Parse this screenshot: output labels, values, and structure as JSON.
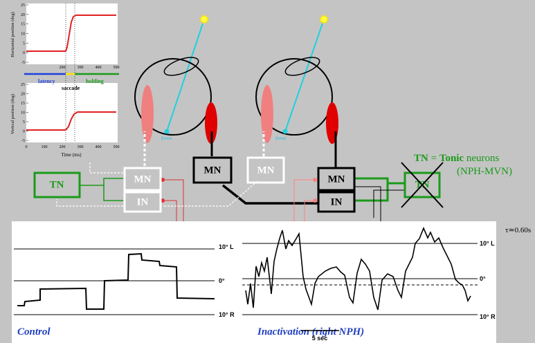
{
  "inset_top": {
    "y_label": "Horizontal position (deg)",
    "y_ticks": [
      25,
      20,
      15,
      10,
      5,
      0,
      -5
    ],
    "x_ticks": [
      200,
      300,
      400,
      500
    ]
  },
  "phases": {
    "latency": "latency",
    "saccade": "saccade",
    "holding": "holding"
  },
  "inset_bottom": {
    "y_label": "Vertical position (deg)",
    "y_ticks": [
      25,
      20,
      15,
      10,
      5,
      0,
      -5
    ],
    "x_ticks": [
      0,
      100,
      200,
      300,
      400,
      500
    ],
    "x_label": "Time (ms)"
  },
  "eyes": [
    {
      "fovea": "fovea"
    },
    {
      "fovea": "fovea"
    }
  ],
  "neurons": {
    "left_tn": "TN",
    "left_mn": "MN",
    "left_in": "IN",
    "mid_mn": "MN",
    "mid_mn2": "MN",
    "right_mn": "MN",
    "right_in": "IN",
    "right_tn": "TN"
  },
  "legend": {
    "abbr": "TN",
    "eq": "=",
    "bold": "Tonic",
    "rest": "neurons",
    "sub": "(NPH-MVN)"
  },
  "recordings": {
    "left_l": "10° L",
    "left_zero": "0°",
    "left_r": "10° R",
    "right_l": "10° L",
    "right_zero": "0°",
    "right_r": "10° R",
    "control": "Control",
    "inactivation": "Inactivation (right NPH)",
    "scale": "5 sec",
    "tau": "τ≃0.60s"
  }
}
